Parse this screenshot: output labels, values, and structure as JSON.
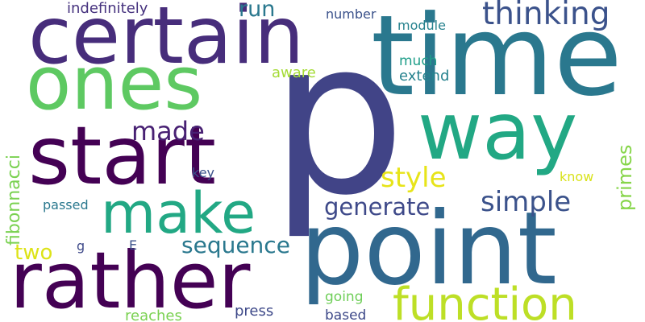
{
  "words": [
    {
      "id": "p",
      "text": "p",
      "color": "#414487"
    },
    {
      "id": "time",
      "text": "time",
      "color": "#2a788e"
    },
    {
      "id": "point",
      "text": "point",
      "color": "#31688e"
    },
    {
      "id": "certain",
      "text": "certain",
      "color": "#472d7b"
    },
    {
      "id": "ones",
      "text": "ones",
      "color": "#5ec962"
    },
    {
      "id": "start",
      "text": "start",
      "color": "#440154"
    },
    {
      "id": "rather",
      "text": "rather",
      "color": "#440154"
    },
    {
      "id": "way",
      "text": "way",
      "color": "#22a884"
    },
    {
      "id": "make",
      "text": "make",
      "color": "#22a884"
    },
    {
      "id": "function",
      "text": "function",
      "color": "#bddf26"
    },
    {
      "id": "thinking",
      "text": "thinking",
      "color": "#3b528b"
    },
    {
      "id": "made",
      "text": "made",
      "color": "#482173"
    },
    {
      "id": "style",
      "text": "style",
      "color": "#e7e419"
    },
    {
      "id": "simple",
      "text": "simple",
      "color": "#3b528b"
    },
    {
      "id": "generate",
      "text": "generate",
      "color": "#3e4989"
    },
    {
      "id": "sequence",
      "text": "sequence",
      "color": "#2a788e"
    },
    {
      "id": "fibonnacci",
      "text": "fibonnacci",
      "color": "#7ad151"
    },
    {
      "id": "primes",
      "text": "primes",
      "color": "#86d549"
    },
    {
      "id": "two",
      "text": "two",
      "color": "#dde318"
    },
    {
      "id": "run",
      "text": "run",
      "color": "#2a788e"
    },
    {
      "id": "indefinitely",
      "text": "indefinitely",
      "color": "#46327e"
    },
    {
      "id": "number",
      "text": "number",
      "color": "#3b528b"
    },
    {
      "id": "module",
      "text": "module",
      "color": "#26828e"
    },
    {
      "id": "much",
      "text": "much",
      "color": "#1f9e89"
    },
    {
      "id": "extend",
      "text": "extend",
      "color": "#26828e"
    },
    {
      "id": "aware",
      "text": "aware",
      "color": "#a5db36"
    },
    {
      "id": "key",
      "text": "key",
      "color": "#3b528b"
    },
    {
      "id": "passed",
      "text": "passed",
      "color": "#2a788e"
    },
    {
      "id": "know",
      "text": "know",
      "color": "#d8e219"
    },
    {
      "id": "g",
      "text": "g",
      "color": "#3e4989"
    },
    {
      "id": "E",
      "text": "E",
      "color": "#3b528b"
    },
    {
      "id": "going",
      "text": "going",
      "color": "#6ece58"
    },
    {
      "id": "reaches",
      "text": "reaches",
      "color": "#7ad151"
    },
    {
      "id": "press",
      "text": "press",
      "color": "#3e4989"
    },
    {
      "id": "based",
      "text": "based",
      "color": "#3e4989"
    }
  ]
}
